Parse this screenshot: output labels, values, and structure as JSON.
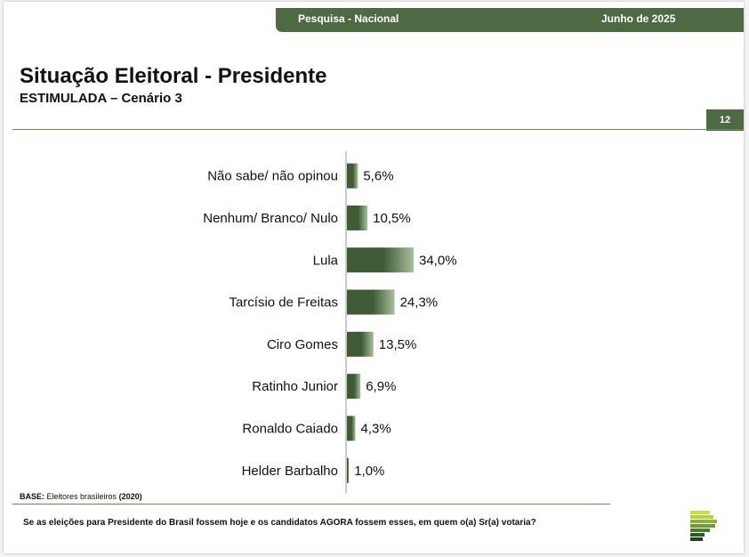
{
  "header": {
    "survey_label": "Pesquisa - Nacional",
    "date_label": "Junho de 2025"
  },
  "slide": {
    "title": "Situação Eleitoral - Presidente",
    "subtitle": "ESTIMULADA – Cenário 3",
    "page_number": "12"
  },
  "footer": {
    "base_label": "BASE:",
    "base_text": "Eleitores brasileiros",
    "base_count": "(2020)",
    "question": "Se as eleições para Presidente do Brasil fossem hoje e os candidatos AGORA fossem esses, em quem o(a) Sr(a) votaria?"
  },
  "colors": {
    "brand_green": "#4e6a42",
    "bar_dark": "#3f5c37",
    "bar_light": "#a9bfa0",
    "rule": "#6a8a5c"
  },
  "logo": {
    "icon": "stacked-bars-logo-icon"
  },
  "chart_data": {
    "type": "bar",
    "orientation": "horizontal",
    "categories": [
      "Não sabe/ não opinou",
      "Nenhum/ Branco/ Nulo",
      "Lula",
      "Tarcísio de Freitas",
      "Ciro Gomes",
      "Ratinho Junior",
      "Ronaldo Caiado",
      "Helder Barbalho"
    ],
    "values": [
      5.6,
      10.5,
      34.0,
      24.3,
      13.5,
      6.9,
      4.3,
      1.0
    ],
    "value_labels": [
      "5,6%",
      "10,5%",
      "34,0%",
      "24,3%",
      "13,5%",
      "6,9%",
      "4,3%",
      "1,0%"
    ],
    "value_unit": "%",
    "xlim": [
      0,
      34.0
    ],
    "grid": false,
    "legend": "none"
  }
}
